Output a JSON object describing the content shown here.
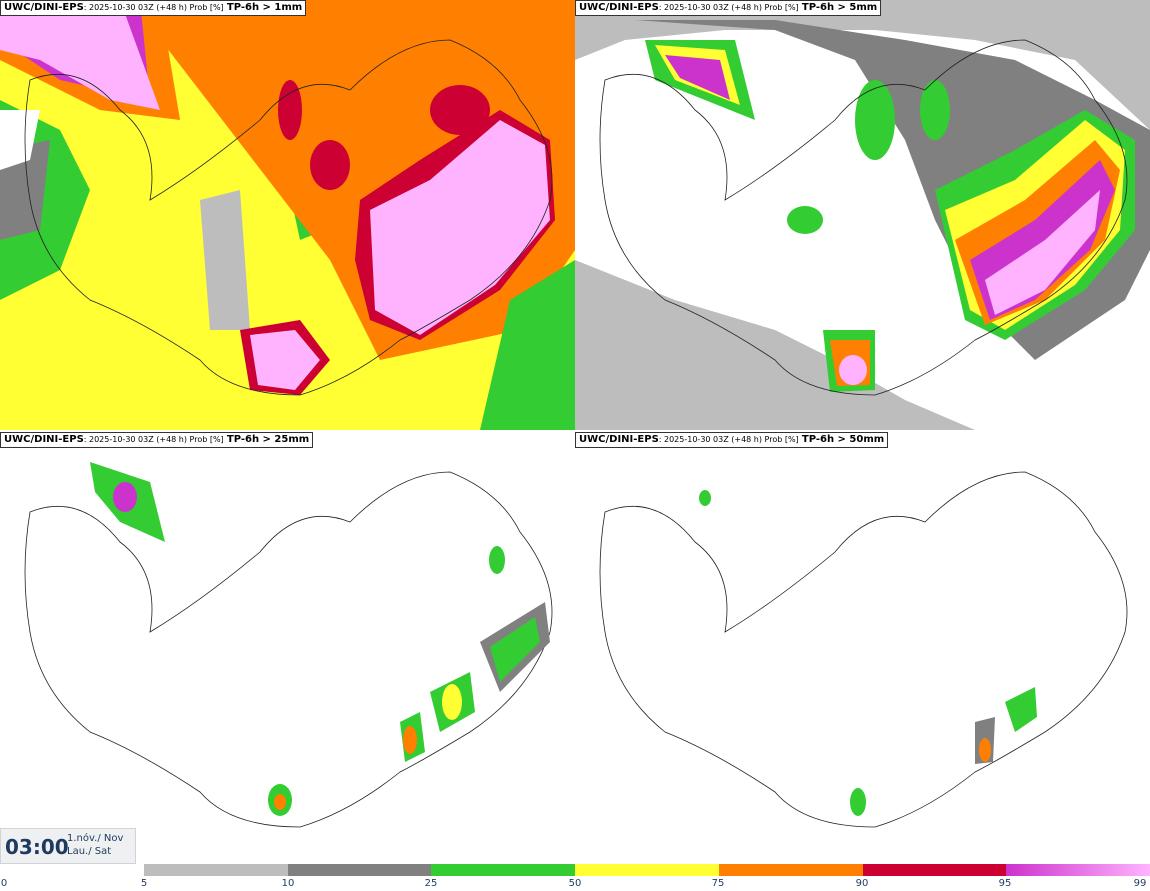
{
  "panels": [
    {
      "model": "UWC/DINI-EPS",
      "meta": ": 2025-10-30 03Z (+48 h) Prob [%]",
      "variable": "TP-6h > 1mm"
    },
    {
      "model": "UWC/DINI-EPS",
      "meta": ": 2025-10-30 03Z (+48 h) Prob [%]",
      "variable": "TP-6h > 5mm"
    },
    {
      "model": "UWC/DINI-EPS",
      "meta": ": 2025-10-30 03Z (+48 h) Prob [%]",
      "variable": "TP-6h > 25mm"
    },
    {
      "model": "UWC/DINI-EPS",
      "meta": ": 2025-10-30 03Z (+48 h) Prob [%]",
      "variable": "TP-6h > 50mm"
    }
  ],
  "time": {
    "clock": "03:00",
    "date_line1": "1.nóv./ Nov",
    "date_line2": "Lau./ Sat"
  },
  "colorbar": {
    "ticks": [
      "0",
      "5",
      "10",
      "25",
      "50",
      "75",
      "90",
      "95",
      "99"
    ],
    "colors": [
      "#ffffff",
      "#bdbdbd",
      "#808080",
      "#33cc33",
      "#ffff33",
      "#ff7f00",
      "#cc0033",
      "#cc33cc",
      "#ffb3ff"
    ]
  }
}
